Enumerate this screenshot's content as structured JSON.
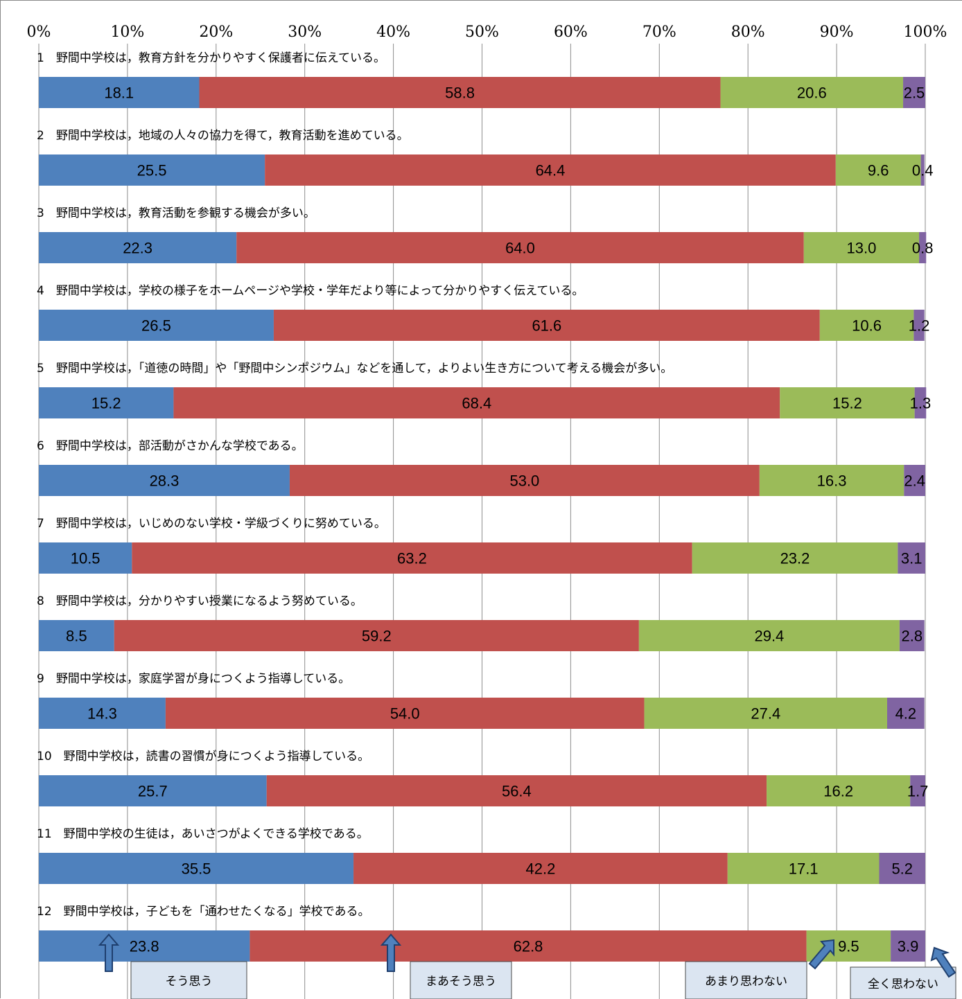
{
  "chart_data": {
    "type": "bar",
    "orientation": "horizontal-stacked-100",
    "x_ticks": [
      "0%",
      "10%",
      "20%",
      "30%",
      "40%",
      "50%",
      "60%",
      "70%",
      "80%",
      "90%",
      "100%"
    ],
    "xlim": [
      0,
      100
    ],
    "grid": true,
    "colors": {
      "そう思う": "#4F81BD",
      "まあそう思う": "#C0504D",
      "あまり思わない": "#9BBB59",
      "全く思わない": "#8064A2"
    },
    "series_names": [
      "そう思う",
      "まあそう思う",
      "あまり思わない",
      "全く思わない"
    ],
    "categories": [
      "1　野間中学校は，教育方針を分かりやすく保護者に伝えている。",
      "2　野間中学校は，地域の人々の協力を得て，教育活動を進めている。",
      "3　野間中学校は，教育活動を参観する機会が多い。",
      "4　野間中学校は，学校の様子をホームページや学校・学年だより等によって分かりやすく伝えている。",
      "5　野間中学校は，「道徳の時間」や「野間中シンポジウム」などを通して，よりよい生き方について考える機会が多い。",
      "6　野間中学校は，部活動がさかんな学校である。",
      "7　野間中学校は，いじめのない学校・学級づくりに努めている。",
      "8　野間中学校は，分かりやすい授業になるよう努めている。",
      "9　野間中学校は，家庭学習が身につくよう指導している。",
      "10　野間中学校は，読書の習慣が身につくよう指導している。",
      "11　野間中学校の生徒は，あいさつがよくできる学校である。",
      "12　野間中学校は，子どもを「通わせたくなる」学校である。"
    ],
    "series": [
      {
        "name": "そう思う",
        "values": [
          18.1,
          25.5,
          22.3,
          26.5,
          15.2,
          28.3,
          10.5,
          8.5,
          14.3,
          25.7,
          35.5,
          23.8
        ]
      },
      {
        "name": "まあそう思う",
        "values": [
          58.8,
          64.4,
          64.0,
          61.6,
          68.4,
          53.0,
          63.2,
          59.2,
          54.0,
          56.4,
          42.2,
          62.8
        ]
      },
      {
        "name": "あまり思わない",
        "values": [
          20.6,
          9.6,
          13.0,
          10.6,
          15.2,
          16.3,
          23.2,
          29.4,
          27.4,
          16.2,
          17.1,
          9.5
        ]
      },
      {
        "name": "全く思わない",
        "values": [
          2.5,
          0.4,
          0.8,
          1.2,
          1.3,
          2.4,
          3.1,
          2.8,
          4.2,
          1.7,
          5.2,
          3.9
        ]
      }
    ],
    "legend": {
      "placement": "bottom, callout boxes with arrows",
      "items": [
        "そう思う",
        "まあそう思う",
        "あまり思わない",
        "全く思わない"
      ]
    }
  }
}
